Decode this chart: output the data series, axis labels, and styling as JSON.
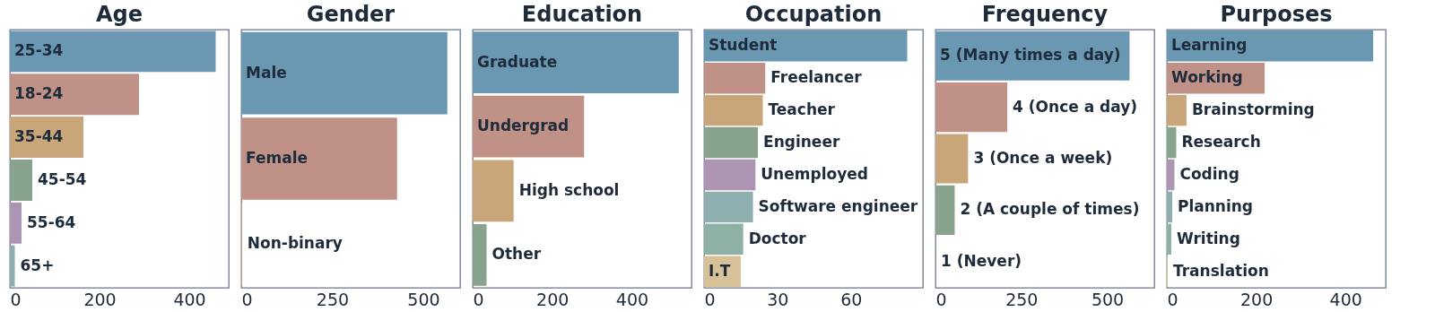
{
  "chart_data": [
    {
      "type": "bar",
      "orientation": "horizontal",
      "title": "Age",
      "categories": [
        "25-34",
        "18-24",
        "35-44",
        "45-54",
        "55-64",
        "65+"
      ],
      "values": [
        459,
        288,
        164,
        50,
        26,
        11
      ],
      "colors": [
        "#6a98b2",
        "#bf9187",
        "#c9a57a",
        "#87a38d",
        "#ad96b3",
        "#8eaeb0"
      ],
      "xlim": [
        0,
        488
      ],
      "xticks": [
        0,
        200,
        400
      ],
      "grid": false
    },
    {
      "type": "bar",
      "orientation": "horizontal",
      "title": "Gender",
      "categories": [
        "Male",
        "Female",
        "Non-binary"
      ],
      "values": [
        566,
        428,
        2
      ],
      "colors": [
        "#6a98b2",
        "#bf9187",
        "#c9a57a"
      ],
      "xlim": [
        0,
        601
      ],
      "xticks": [
        0,
        250,
        500
      ],
      "grid": false
    },
    {
      "type": "bar",
      "orientation": "horizontal",
      "title": "Education",
      "categories": [
        "Graduate",
        "Undergrad",
        "High school",
        "Other"
      ],
      "values": [
        518,
        280,
        103,
        35
      ],
      "colors": [
        "#6a98b2",
        "#bf9187",
        "#c9a57a",
        "#87a38d"
      ],
      "xlim": [
        0,
        550
      ],
      "xticks": [
        0,
        200,
        400
      ],
      "grid": false
    },
    {
      "type": "bar",
      "orientation": "horizontal",
      "title": "Occupation",
      "categories": [
        "Student",
        "Freelancer",
        "Teacher",
        "Engineer",
        "Unemployed",
        "Software engineer",
        "Doctor",
        "I.T"
      ],
      "values": [
        83,
        25,
        24,
        22,
        21,
        20,
        16,
        15
      ],
      "colors": [
        "#6a98b2",
        "#bf9187",
        "#c9a57a",
        "#87a38d",
        "#ad96b3",
        "#8eaeb0",
        "#8fb0a4",
        "#d6c199"
      ],
      "xlim": [
        0,
        89.4
      ],
      "xticks": [
        0,
        30,
        60
      ],
      "grid": false
    },
    {
      "type": "bar",
      "orientation": "horizontal",
      "title": "Frequency",
      "categories": [
        "5 (Many times a day)",
        "4 (Once a day)",
        "3 (Once a week)",
        "2 (A couple of times)",
        "1 (Never)"
      ],
      "values": [
        565,
        209,
        95,
        56,
        0
      ],
      "colors": [
        "#6a98b2",
        "#bf9187",
        "#c9a57a",
        "#87a38d",
        "#ad96b3"
      ],
      "xlim": [
        0,
        637
      ],
      "xticks": [
        0,
        250,
        500
      ],
      "grid": false
    },
    {
      "type": "bar",
      "orientation": "horizontal",
      "title": "Purposes",
      "categories": [
        "Learning",
        "Working",
        "Brainstorming",
        "Research",
        "Coding",
        "Planning",
        "Writing",
        "Translation"
      ],
      "values": [
        462,
        219,
        44,
        21,
        17,
        12,
        10,
        2
      ],
      "colors": [
        "#6a98b2",
        "#bf9187",
        "#c9a57a",
        "#87a38d",
        "#ad96b3",
        "#8eaeb0",
        "#8fb0a4",
        "#d6c199"
      ],
      "xlim": [
        0,
        490
      ],
      "xticks": [
        0,
        200,
        400
      ],
      "grid": false
    }
  ]
}
